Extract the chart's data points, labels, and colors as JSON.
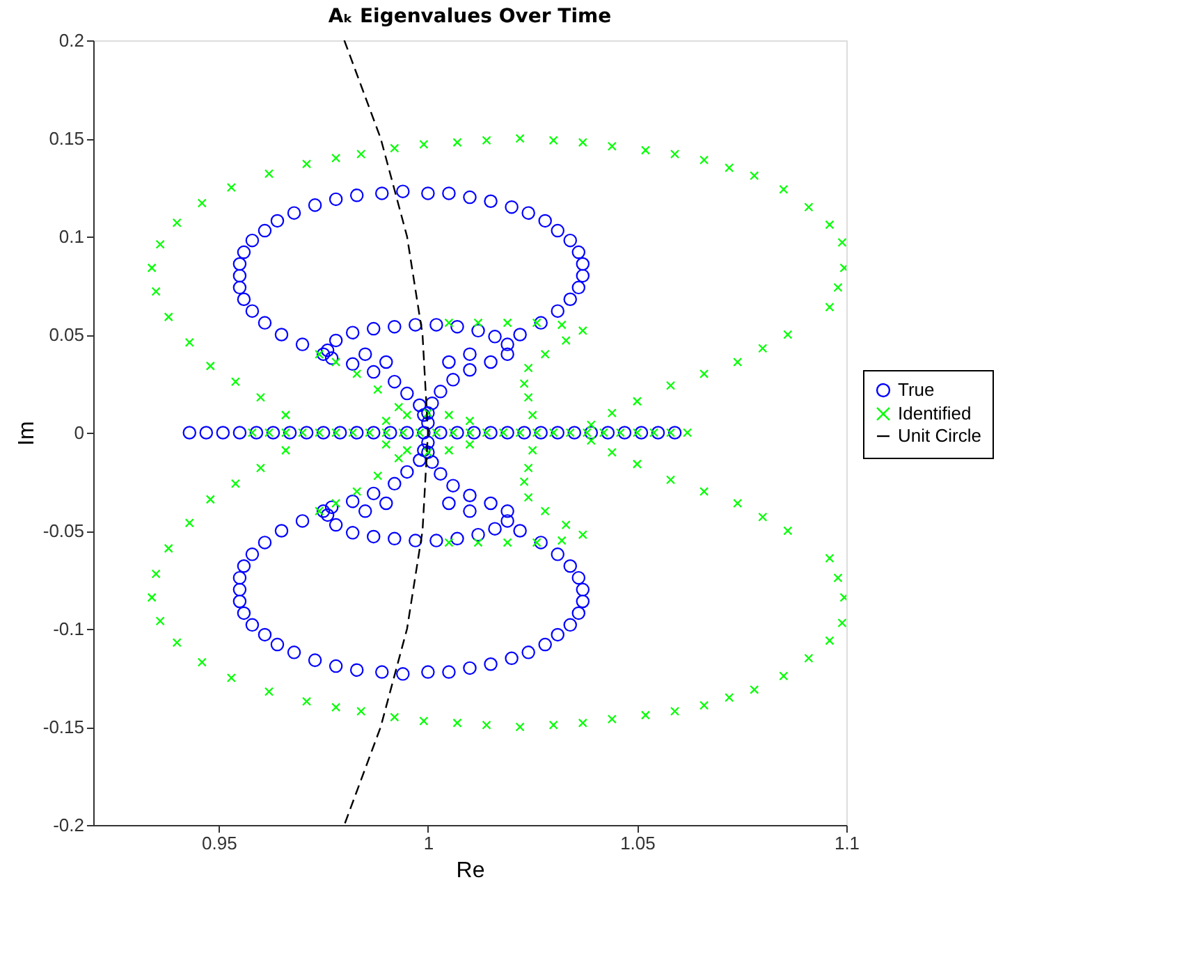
{
  "chart_data": {
    "type": "scatter",
    "title": "Aₖ Eigenvalues Over Time",
    "xlabel": "Re",
    "ylabel": "Im",
    "xlim": [
      0.92,
      1.1
    ],
    "ylim": [
      -0.2,
      0.2
    ],
    "xticks": [
      0.95,
      1,
      1.05,
      1.1
    ],
    "yticks": [
      -0.2,
      -0.15,
      -0.1,
      -0.05,
      0,
      0.05,
      0.1,
      0.15,
      0.2
    ],
    "legend": "right",
    "series": [
      {
        "name": "True",
        "marker": "circle",
        "color": "#0000ff",
        "x": [
          0.975,
          0.97,
          0.965,
          0.961,
          0.958,
          0.956,
          0.955,
          0.955,
          0.955,
          0.956,
          0.958,
          0.961,
          0.964,
          0.968,
          0.973,
          0.978,
          0.983,
          0.989,
          0.994,
          1.0,
          1.005,
          1.01,
          1.015,
          1.02,
          1.024,
          1.028,
          1.031,
          1.034,
          1.036,
          1.037,
          1.037,
          1.036,
          1.034,
          1.031,
          1.027,
          1.022,
          0.975,
          0.97,
          0.965,
          0.961,
          0.958,
          0.956,
          0.955,
          0.955,
          0.955,
          0.956,
          0.958,
          0.961,
          0.964,
          0.968,
          0.973,
          0.978,
          0.983,
          0.989,
          0.994,
          1.0,
          1.005,
          1.01,
          1.015,
          1.02,
          1.024,
          1.028,
          1.031,
          1.034,
          1.036,
          1.037,
          1.037,
          1.036,
          1.034,
          1.031,
          1.027,
          1.022,
          0.976,
          0.978,
          0.982,
          0.987,
          0.992,
          0.997,
          1.002,
          1.007,
          1.012,
          1.016,
          1.019,
          1.019,
          1.015,
          1.01,
          1.006,
          1.003,
          1.001,
          1.0,
          1.0,
          0.977,
          0.982,
          0.987,
          0.992,
          0.995,
          0.998,
          0.999,
          0.985,
          0.99,
          1.01,
          1.005,
          0.976,
          0.978,
          0.982,
          0.987,
          0.992,
          0.997,
          1.002,
          1.007,
          1.012,
          1.016,
          1.019,
          1.019,
          1.015,
          1.01,
          1.006,
          1.003,
          1.001,
          1.0,
          1.0,
          0.977,
          0.982,
          0.987,
          0.992,
          0.995,
          0.998,
          0.999,
          0.985,
          0.99,
          1.01,
          1.005,
          0.943,
          0.947,
          0.951,
          0.955,
          0.959,
          0.963,
          0.967,
          0.971,
          0.975,
          0.979,
          0.983,
          0.987,
          0.991,
          0.995,
          0.999,
          1.003,
          1.007,
          1.011,
          1.015,
          1.019,
          1.023,
          1.027,
          1.031,
          1.035,
          1.039,
          1.043,
          1.047,
          1.051,
          1.055,
          1.059
        ],
        "values": [
          0.04,
          0.045,
          0.05,
          0.056,
          0.062,
          0.068,
          0.074,
          0.08,
          0.086,
          0.092,
          0.098,
          0.103,
          0.108,
          0.112,
          0.116,
          0.119,
          0.121,
          0.122,
          0.123,
          0.122,
          0.122,
          0.12,
          0.118,
          0.115,
          0.112,
          0.108,
          0.103,
          0.098,
          0.092,
          0.086,
          0.08,
          0.074,
          0.068,
          0.062,
          0.056,
          0.05,
          -0.04,
          -0.045,
          -0.05,
          -0.056,
          -0.062,
          -0.068,
          -0.074,
          -0.08,
          -0.086,
          -0.092,
          -0.098,
          -0.103,
          -0.108,
          -0.112,
          -0.116,
          -0.119,
          -0.121,
          -0.122,
          -0.123,
          -0.122,
          -0.122,
          -0.12,
          -0.118,
          -0.115,
          -0.112,
          -0.108,
          -0.103,
          -0.098,
          -0.092,
          -0.086,
          -0.08,
          -0.074,
          -0.068,
          -0.062,
          -0.056,
          -0.05,
          0.042,
          0.047,
          0.051,
          0.053,
          0.054,
          0.055,
          0.055,
          0.054,
          0.052,
          0.049,
          0.045,
          0.04,
          0.036,
          0.032,
          0.027,
          0.021,
          0.015,
          0.01,
          0.005,
          0.038,
          0.035,
          0.031,
          0.026,
          0.02,
          0.014,
          0.009,
          0.04,
          0.036,
          0.04,
          0.036,
          -0.042,
          -0.047,
          -0.051,
          -0.053,
          -0.054,
          -0.055,
          -0.055,
          -0.054,
          -0.052,
          -0.049,
          -0.045,
          -0.04,
          -0.036,
          -0.032,
          -0.027,
          -0.021,
          -0.015,
          -0.01,
          -0.005,
          -0.038,
          -0.035,
          -0.031,
          -0.026,
          -0.02,
          -0.014,
          -0.009,
          -0.04,
          -0.036,
          -0.04,
          -0.036,
          0,
          0,
          0,
          0,
          0,
          0,
          0,
          0,
          0,
          0,
          0,
          0,
          0,
          0,
          0,
          0,
          0,
          0,
          0,
          0,
          0,
          0,
          0,
          0,
          0,
          0,
          0,
          0,
          0,
          0
        ]
      },
      {
        "name": "Identified",
        "marker": "cross",
        "color": "#00ff00",
        "x": [
          0.966,
          0.96,
          0.954,
          0.948,
          0.943,
          0.938,
          0.935,
          0.934,
          0.936,
          0.94,
          0.946,
          0.953,
          0.962,
          0.971,
          0.978,
          0.984,
          0.992,
          0.999,
          1.007,
          1.014,
          1.022,
          1.03,
          1.037,
          1.044,
          1.052,
          1.059,
          1.066,
          1.072,
          1.078,
          1.085,
          1.091,
          1.096,
          1.099,
          1.0995,
          1.098,
          1.096,
          1.086,
          1.08,
          1.074,
          1.066,
          1.058,
          1.05,
          1.044,
          1.039,
          0.966,
          0.96,
          0.954,
          0.948,
          0.943,
          0.938,
          0.935,
          0.934,
          0.936,
          0.94,
          0.946,
          0.953,
          0.962,
          0.971,
          0.978,
          0.984,
          0.992,
          0.999,
          1.007,
          1.014,
          1.022,
          1.03,
          1.037,
          1.044,
          1.052,
          1.059,
          1.066,
          1.072,
          1.078,
          1.085,
          1.091,
          1.096,
          1.099,
          1.0995,
          1.098,
          1.096,
          1.086,
          1.08,
          1.074,
          1.066,
          1.058,
          1.05,
          1.044,
          1.039,
          0.974,
          0.978,
          0.983,
          0.988,
          0.993,
          1.005,
          1.012,
          1.019,
          1.026,
          1.032,
          1.037,
          1.033,
          1.028,
          1.024,
          1.023,
          1.024,
          1.025,
          0.99,
          0.995,
          1.0,
          1.005,
          1.01,
          0.974,
          0.978,
          0.983,
          0.988,
          0.993,
          1.005,
          1.012,
          1.019,
          1.026,
          1.032,
          1.037,
          1.033,
          1.028,
          1.024,
          1.023,
          1.024,
          1.025,
          0.99,
          0.995,
          1.0,
          1.005,
          1.01,
          0.958,
          0.962,
          0.966,
          0.97,
          0.974,
          0.978,
          0.982,
          0.986,
          0.99,
          0.994,
          0.998,
          1.002,
          1.006,
          1.01,
          1.014,
          1.018,
          1.022,
          1.026,
          1.03,
          1.034,
          1.038,
          1.042,
          1.046,
          1.05,
          1.054,
          1.058,
          1.062
        ],
        "values": [
          0.009,
          0.018,
          0.026,
          0.034,
          0.046,
          0.059,
          0.072,
          0.084,
          0.096,
          0.107,
          0.117,
          0.125,
          0.132,
          0.137,
          0.14,
          0.142,
          0.145,
          0.147,
          0.148,
          0.149,
          0.15,
          0.149,
          0.148,
          0.146,
          0.144,
          0.142,
          0.139,
          0.135,
          0.131,
          0.124,
          0.115,
          0.106,
          0.097,
          0.084,
          0.074,
          0.064,
          0.05,
          0.043,
          0.036,
          0.03,
          0.024,
          0.016,
          0.01,
          0.004,
          -0.009,
          -0.018,
          -0.026,
          -0.034,
          -0.046,
          -0.059,
          -0.072,
          -0.084,
          -0.096,
          -0.107,
          -0.117,
          -0.125,
          -0.132,
          -0.137,
          -0.14,
          -0.142,
          -0.145,
          -0.147,
          -0.148,
          -0.149,
          -0.15,
          -0.149,
          -0.148,
          -0.146,
          -0.144,
          -0.142,
          -0.139,
          -0.135,
          -0.131,
          -0.124,
          -0.115,
          -0.106,
          -0.097,
          -0.084,
          -0.074,
          -0.064,
          -0.05,
          -0.043,
          -0.036,
          -0.03,
          -0.024,
          -0.016,
          -0.01,
          -0.004,
          0.04,
          0.036,
          0.03,
          0.022,
          0.013,
          0.056,
          0.056,
          0.056,
          0.056,
          0.055,
          0.052,
          0.047,
          0.04,
          0.033,
          0.025,
          0.018,
          0.009,
          0.006,
          0.009,
          0.01,
          0.009,
          0.006,
          -0.04,
          -0.036,
          -0.03,
          -0.022,
          -0.013,
          -0.056,
          -0.056,
          -0.056,
          -0.056,
          -0.055,
          -0.052,
          -0.047,
          -0.04,
          -0.033,
          -0.025,
          -0.018,
          -0.009,
          -0.006,
          -0.009,
          -0.01,
          -0.009,
          -0.006,
          0,
          0,
          0,
          0,
          0,
          0,
          0,
          0,
          0,
          0,
          0,
          0,
          0,
          0,
          0,
          0,
          0,
          0,
          0,
          0,
          0,
          0,
          0,
          0,
          0,
          0,
          0
        ]
      },
      {
        "name": "Unit Circle",
        "type": "line",
        "line_style": "dashed",
        "color": "#000000",
        "x": [
          0.98,
          0.9887,
          0.995,
          0.9987,
          1.0,
          0.9987,
          0.995,
          0.9887,
          0.98
        ],
        "values": [
          0.2,
          0.15,
          0.1,
          0.05,
          0,
          -0.05,
          -0.1,
          -0.15,
          -0.2
        ]
      }
    ]
  }
}
